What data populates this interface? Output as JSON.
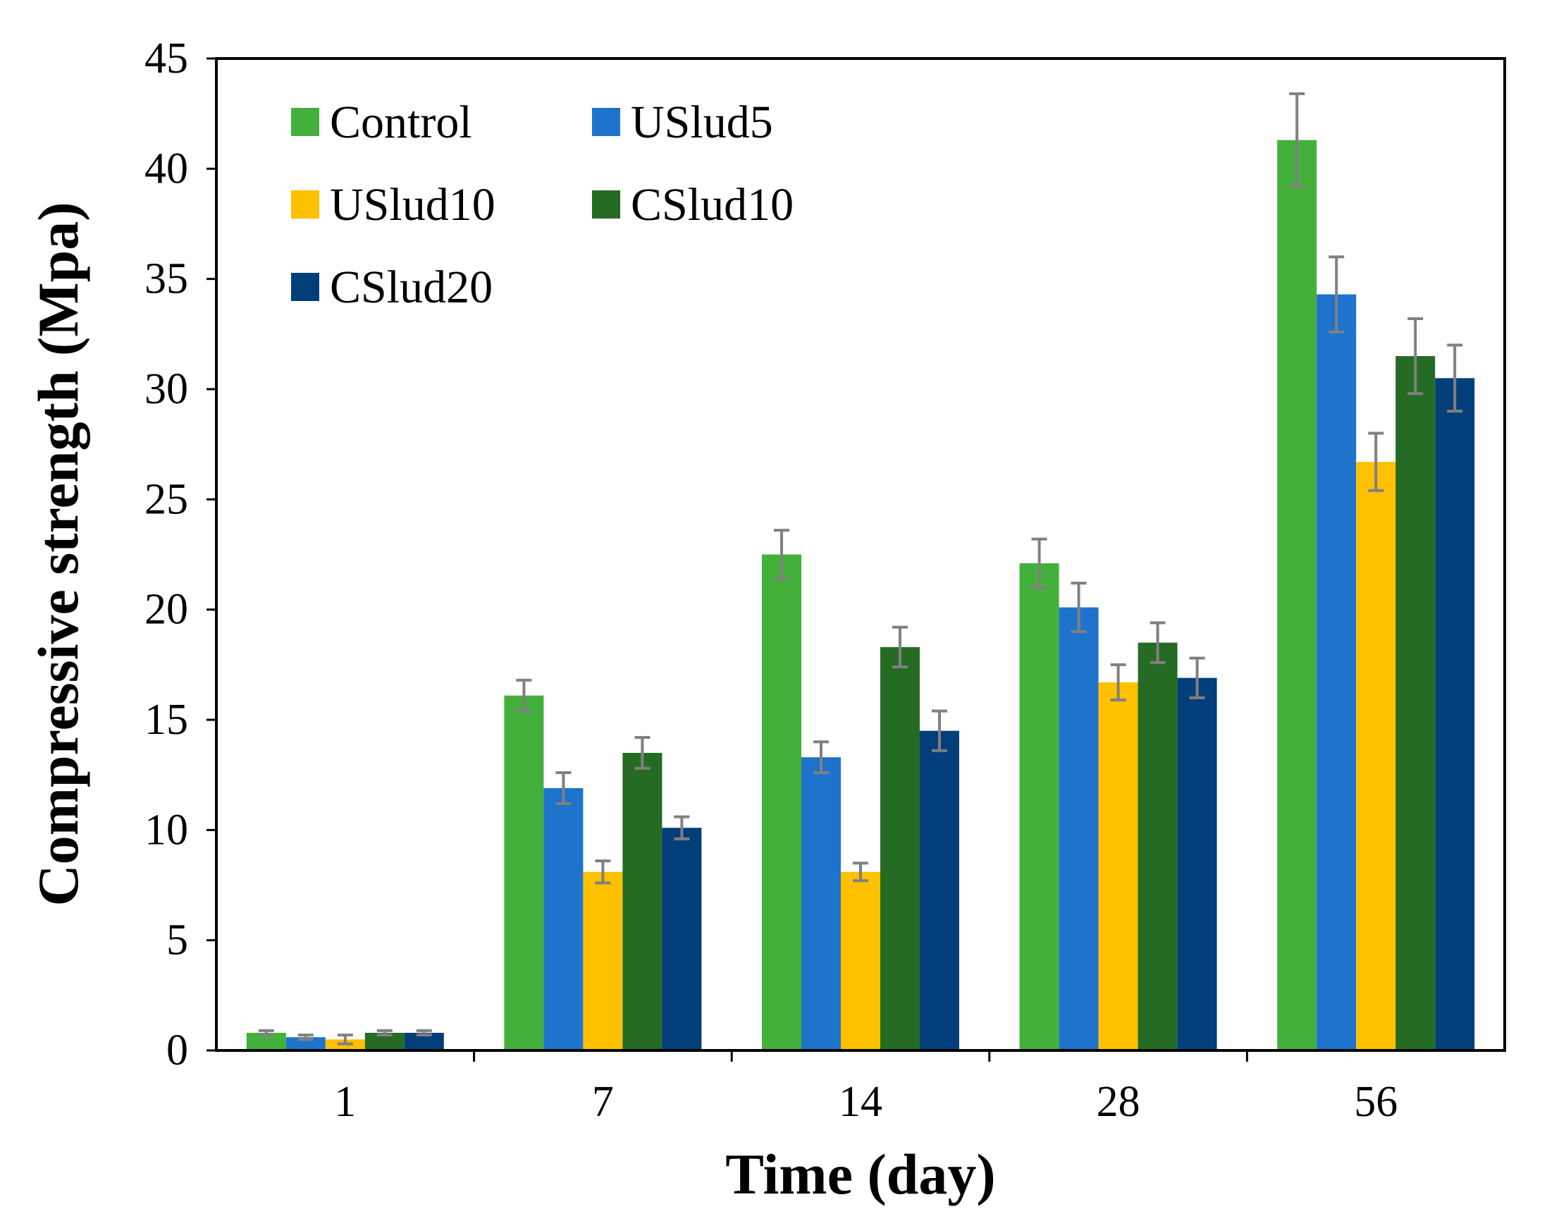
{
  "chart_data": {
    "type": "bar",
    "title": "",
    "xlabel": "Time (day)",
    "ylabel": "Compressive strength (Mpa)",
    "ylim": [
      0,
      45
    ],
    "yticks": [
      0,
      5,
      10,
      15,
      20,
      25,
      30,
      35,
      40,
      45
    ],
    "categories": [
      "1",
      "7",
      "14",
      "28",
      "56"
    ],
    "grid": false,
    "legend_position": "top-left",
    "error_bar_color": "#808080",
    "series": [
      {
        "name": "Control",
        "color": "#44b03c",
        "values": [
          0.8,
          16.1,
          22.5,
          22.1,
          41.3
        ],
        "errors": [
          0.1,
          0.7,
          1.1,
          1.1,
          2.1
        ]
      },
      {
        "name": "USlud5",
        "color": "#1e73cc",
        "values": [
          0.6,
          11.9,
          13.3,
          20.1,
          34.3
        ],
        "errors": [
          0.1,
          0.7,
          0.7,
          1.1,
          1.7
        ]
      },
      {
        "name": "USlud10",
        "color": "#ffc000",
        "values": [
          0.5,
          8.1,
          8.1,
          16.7,
          26.7
        ],
        "errors": [
          0.2,
          0.5,
          0.4,
          0.8,
          1.3
        ]
      },
      {
        "name": "CSlud10",
        "color": "#266b24",
        "values": [
          0.8,
          13.5,
          18.3,
          18.5,
          31.5
        ],
        "errors": [
          0.1,
          0.7,
          0.9,
          0.9,
          1.7
        ]
      },
      {
        "name": "CSlud20",
        "color": "#023f7a",
        "values": [
          0.8,
          10.1,
          14.5,
          16.9,
          30.5
        ],
        "errors": [
          0.1,
          0.5,
          0.9,
          0.9,
          1.5
        ]
      }
    ]
  }
}
